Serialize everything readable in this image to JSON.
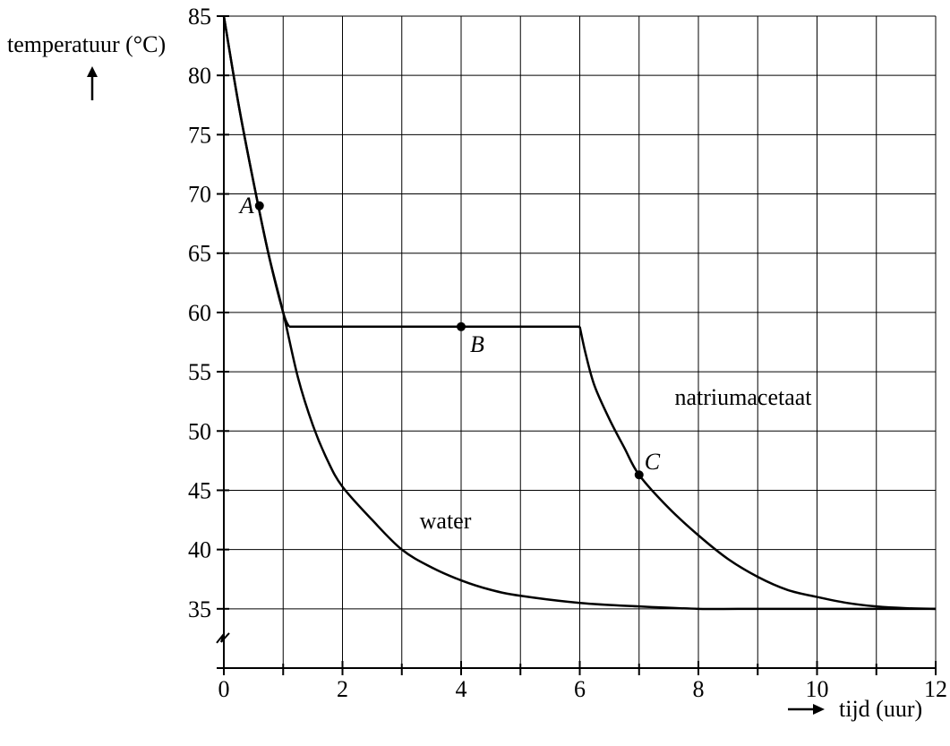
{
  "chart_data": {
    "type": "line",
    "title": "",
    "xlabel": "tijd (uur)",
    "ylabel": "temperatuur (°C)",
    "xlim": [
      0,
      12
    ],
    "ylim": [
      30,
      85
    ],
    "y_axis_break_below": 35,
    "grid": true,
    "x_ticks": [
      0,
      1,
      2,
      3,
      4,
      5,
      6,
      7,
      8,
      9,
      10,
      11,
      12
    ],
    "x_tick_labels": [
      {
        "value": 0,
        "label": "0"
      },
      {
        "value": 2,
        "label": "2"
      },
      {
        "value": 4,
        "label": "4"
      },
      {
        "value": 6,
        "label": "6"
      },
      {
        "value": 8,
        "label": "8"
      },
      {
        "value": 10,
        "label": "10"
      },
      {
        "value": 12,
        "label": "12"
      }
    ],
    "y_tick_labels": [
      {
        "value": 85,
        "label": "85"
      },
      {
        "value": 80,
        "label": "80"
      },
      {
        "value": 75,
        "label": "75"
      },
      {
        "value": 70,
        "label": "70"
      },
      {
        "value": 65,
        "label": "65"
      },
      {
        "value": 60,
        "label": "60"
      },
      {
        "value": 55,
        "label": "55"
      },
      {
        "value": 50,
        "label": "50"
      },
      {
        "value": 45,
        "label": "45"
      },
      {
        "value": 40,
        "label": "40"
      },
      {
        "value": 35,
        "label": "35"
      }
    ],
    "series": [
      {
        "name": "water",
        "x": [
          0,
          0.25,
          0.5,
          0.75,
          1.0,
          1.25,
          1.5,
          1.75,
          2.0,
          2.5,
          3.0,
          3.5,
          4.0,
          4.5,
          5.0,
          6.0,
          7.0,
          8.0,
          9.0,
          10.0,
          11.0,
          12.0
        ],
        "y": [
          85,
          77.5,
          71,
          65,
          60,
          54.5,
          50.5,
          47.5,
          45.3,
          42.5,
          40.0,
          38.5,
          37.4,
          36.6,
          36.1,
          35.5,
          35.2,
          35.0,
          35.0,
          35.0,
          35.0,
          35.0
        ]
      },
      {
        "name": "natriumacetaat",
        "x": [
          0,
          0.25,
          0.5,
          0.75,
          1.0,
          1.1,
          2.0,
          3.0,
          4.0,
          5.0,
          6.0,
          6.1,
          6.25,
          6.5,
          6.75,
          7.0,
          7.5,
          8.0,
          8.5,
          9.0,
          9.5,
          10.0,
          10.5,
          11.0,
          11.5,
          12.0
        ],
        "y": [
          85,
          77.5,
          71,
          65,
          60,
          58.8,
          58.8,
          58.8,
          58.8,
          58.8,
          58.8,
          56.5,
          53.8,
          51,
          48.6,
          46.3,
          43.5,
          41.2,
          39.2,
          37.7,
          36.6,
          36.0,
          35.5,
          35.2,
          35.05,
          35.0
        ]
      }
    ],
    "points": [
      {
        "label": "A",
        "x": 0.6,
        "y": 69
      },
      {
        "label": "B",
        "x": 4.0,
        "y": 58.8
      },
      {
        "label": "C",
        "x": 7.0,
        "y": 46.3
      }
    ],
    "annotations": [
      {
        "text": "water",
        "x": 3.3,
        "y": 41.8
      },
      {
        "text": "natriumacetaat",
        "x": 7.6,
        "y": 52.2
      }
    ]
  }
}
